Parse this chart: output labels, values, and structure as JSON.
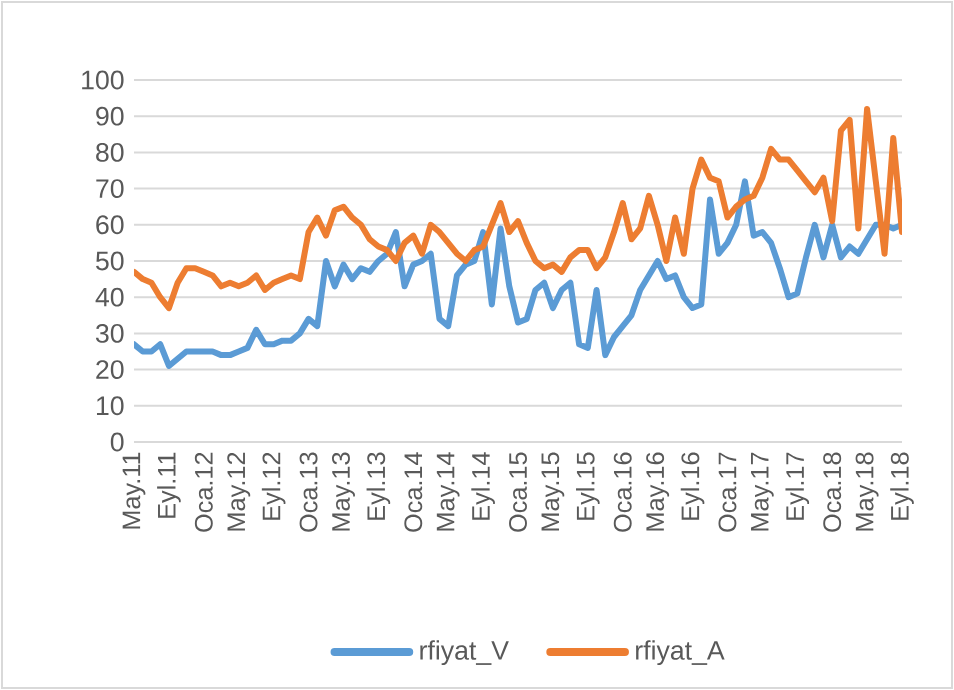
{
  "chart_data": {
    "type": "line",
    "categories": [
      "May.11",
      null,
      null,
      null,
      "Eyl.11",
      null,
      null,
      null,
      "Oca.12",
      null,
      null,
      null,
      "May.12",
      null,
      null,
      null,
      "Eyl.12",
      null,
      null,
      null,
      "Oca.13",
      null,
      null,
      null,
      "May.13",
      null,
      null,
      null,
      "Eyl.13",
      null,
      null,
      null,
      "Oca.14",
      null,
      null,
      null,
      "May.14",
      null,
      null,
      null,
      "Eyl.14",
      null,
      null,
      null,
      "Oca.15",
      null,
      null,
      null,
      "May.15",
      null,
      null,
      null,
      "Eyl.15",
      null,
      null,
      null,
      "Oca.16",
      null,
      null,
      null,
      "May.16",
      null,
      null,
      null,
      "Eyl.16",
      null,
      null,
      null,
      "Oca.17",
      null,
      null,
      null,
      "May.17",
      null,
      null,
      null,
      "Eyl.17",
      null,
      null,
      null,
      "Oca.18",
      null,
      null,
      null,
      "May.18",
      null,
      null,
      null,
      "Eyl.18"
    ],
    "series": [
      {
        "name": "rfiyat_V",
        "color": "#5b9bd5",
        "values": [
          27,
          25,
          25,
          27,
          21,
          23,
          25,
          25,
          25,
          25,
          24,
          24,
          25,
          26,
          31,
          27,
          27,
          28,
          28,
          30,
          34,
          32,
          50,
          43,
          49,
          45,
          48,
          47,
          50,
          52,
          58,
          43,
          49,
          50,
          52,
          34,
          32,
          46,
          49,
          50,
          58,
          38,
          59,
          43,
          33,
          34,
          42,
          44,
          37,
          42,
          44,
          27,
          26,
          42,
          24,
          29,
          32,
          35,
          42,
          46,
          50,
          45,
          46,
          40,
          37,
          38,
          67,
          52,
          55,
          60,
          72,
          57,
          58,
          55,
          48,
          40,
          41,
          51,
          60,
          51,
          60,
          51,
          54,
          52,
          56,
          60,
          60,
          59,
          60
        ]
      },
      {
        "name": "rfiyat_A",
        "color": "#ed7d31",
        "values": [
          47,
          45,
          44,
          40,
          37,
          44,
          48,
          48,
          47,
          46,
          43,
          44,
          43,
          44,
          46,
          42,
          44,
          45,
          46,
          45,
          58,
          62,
          57,
          64,
          65,
          62,
          60,
          56,
          54,
          53,
          50,
          55,
          57,
          52,
          60,
          58,
          55,
          52,
          50,
          53,
          54,
          60,
          66,
          58,
          61,
          55,
          50,
          48,
          49,
          47,
          51,
          53,
          53,
          48,
          51,
          58,
          66,
          56,
          59,
          68,
          60,
          50,
          62,
          52,
          70,
          78,
          73,
          72,
          62,
          65,
          67,
          68,
          73,
          81,
          78,
          78,
          75,
          72,
          69,
          73,
          61,
          86,
          89,
          59,
          92,
          72,
          52,
          84,
          58
        ]
      }
    ],
    "ylim": [
      0,
      100
    ],
    "yticks": [
      0,
      10,
      20,
      30,
      40,
      50,
      60,
      70,
      80,
      90,
      100
    ],
    "grid": "y",
    "legend": "bottom"
  }
}
